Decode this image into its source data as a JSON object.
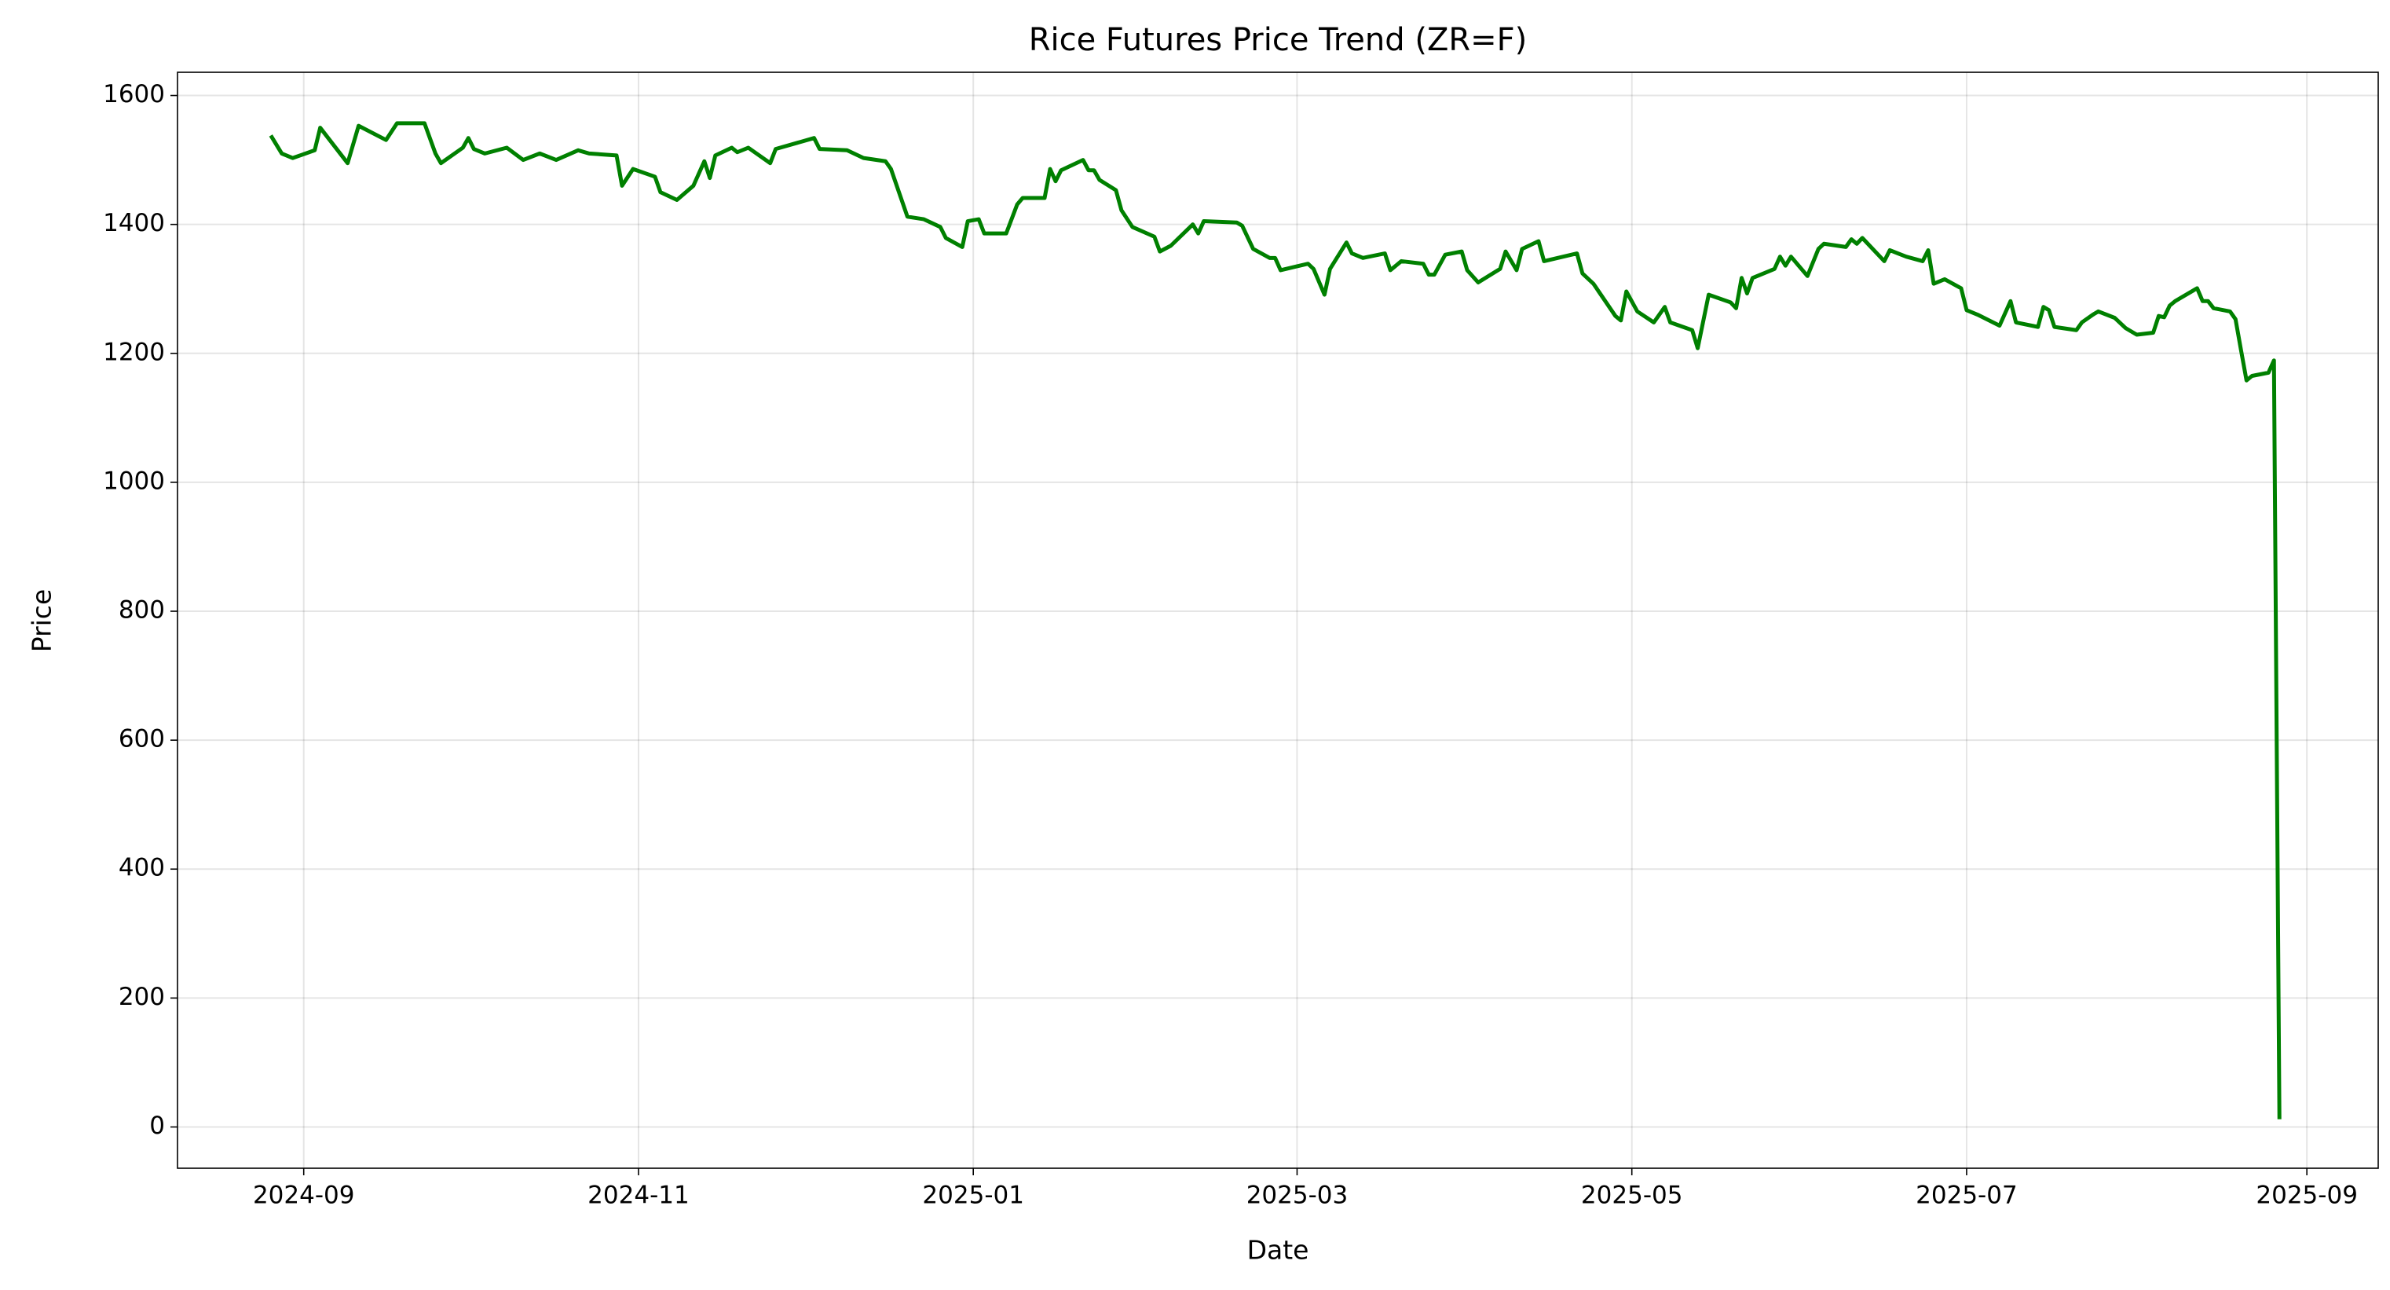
{
  "chart_data": {
    "type": "line",
    "title": "Rice Futures Price Trend (ZR=F)",
    "x_label": "Date",
    "y_label": "Price",
    "x": [
      "2024-08-26",
      "2024-08-28",
      "2024-08-30",
      "2024-09-03",
      "2024-09-04",
      "2024-09-09",
      "2024-09-11",
      "2024-09-16",
      "2024-09-18",
      "2024-09-23",
      "2024-09-25",
      "2024-09-26",
      "2024-09-30",
      "2024-10-01",
      "2024-10-02",
      "2024-10-04",
      "2024-10-08",
      "2024-10-11",
      "2024-10-14",
      "2024-10-17",
      "2024-10-21",
      "2024-10-23",
      "2024-10-28",
      "2024-10-29",
      "2024-10-31",
      "2024-11-04",
      "2024-11-05",
      "2024-11-08",
      "2024-11-11",
      "2024-11-13",
      "2024-11-14",
      "2024-11-15",
      "2024-11-18",
      "2024-11-19",
      "2024-11-21",
      "2024-11-25",
      "2024-11-26",
      "2024-12-03",
      "2024-12-04",
      "2024-12-09",
      "2024-12-12",
      "2024-12-16",
      "2024-12-17",
      "2024-12-20",
      "2024-12-23",
      "2024-12-26",
      "2024-12-27",
      "2024-12-30",
      "2024-12-31",
      "2025-01-02",
      "2025-01-03",
      "2025-01-07",
      "2025-01-09",
      "2025-01-10",
      "2025-01-14",
      "2025-01-15",
      "2025-01-16",
      "2025-01-17",
      "2025-01-21",
      "2025-01-22",
      "2025-01-23",
      "2025-01-24",
      "2025-01-27",
      "2025-01-28",
      "2025-01-30",
      "2025-02-03",
      "2025-02-04",
      "2025-02-06",
      "2025-02-10",
      "2025-02-11",
      "2025-02-12",
      "2025-02-18",
      "2025-02-19",
      "2025-02-21",
      "2025-02-24",
      "2025-02-25",
      "2025-02-26",
      "2025-03-03",
      "2025-03-04",
      "2025-03-06",
      "2025-03-07",
      "2025-03-10",
      "2025-03-11",
      "2025-03-13",
      "2025-03-17",
      "2025-03-18",
      "2025-03-20",
      "2025-03-24",
      "2025-03-25",
      "2025-03-26",
      "2025-03-28",
      "2025-03-31",
      "2025-04-01",
      "2025-04-03",
      "2025-04-07",
      "2025-04-08",
      "2025-04-10",
      "2025-04-11",
      "2025-04-14",
      "2025-04-15",
      "2025-04-21",
      "2025-04-22",
      "2025-04-24",
      "2025-04-28",
      "2025-04-29",
      "2025-04-30",
      "2025-05-02",
      "2025-05-05",
      "2025-05-07",
      "2025-05-08",
      "2025-05-12",
      "2025-05-13",
      "2025-05-15",
      "2025-05-19",
      "2025-05-20",
      "2025-05-21",
      "2025-05-22",
      "2025-05-23",
      "2025-05-27",
      "2025-05-28",
      "2025-05-29",
      "2025-05-30",
      "2025-06-02",
      "2025-06-04",
      "2025-06-05",
      "2025-06-09",
      "2025-06-10",
      "2025-06-11",
      "2025-06-12",
      "2025-06-16",
      "2025-06-17",
      "2025-06-20",
      "2025-06-23",
      "2025-06-24",
      "2025-06-25",
      "2025-06-27",
      "2025-06-30",
      "2025-07-01",
      "2025-07-03",
      "2025-07-07",
      "2025-07-09",
      "2025-07-10",
      "2025-07-14",
      "2025-07-15",
      "2025-07-16",
      "2025-07-17",
      "2025-07-21",
      "2025-07-22",
      "2025-07-24",
      "2025-07-25",
      "2025-07-28",
      "2025-07-30",
      "2025-08-01",
      "2025-08-04",
      "2025-08-05",
      "2025-08-06",
      "2025-08-07",
      "2025-08-08",
      "2025-08-12",
      "2025-08-13",
      "2025-08-14",
      "2025-08-15",
      "2025-08-18",
      "2025-08-19",
      "2025-08-20",
      "2025-08-21",
      "2025-08-22",
      "2025-08-25",
      "2025-08-26",
      "2025-08-27"
    ],
    "series": [
      {
        "color": "#008000",
        "values": [
          1538,
          1510,
          1503,
          1515,
          1550,
          1495,
          1553,
          1531,
          1557,
          1557,
          1510,
          1495,
          1519,
          1534,
          1517,
          1510,
          1519,
          1500,
          1510,
          1500,
          1515,
          1510,
          1507,
          1460,
          1486,
          1474,
          1450,
          1438,
          1460,
          1498,
          1472,
          1507,
          1519,
          1512,
          1519,
          1495,
          1517,
          1534,
          1517,
          1515,
          1503,
          1498,
          1486,
          1412,
          1408,
          1396,
          1379,
          1365,
          1405,
          1408,
          1386,
          1386,
          1431,
          1441,
          1441,
          1486,
          1467,
          1484,
          1500,
          1484,
          1484,
          1469,
          1453,
          1422,
          1396,
          1381,
          1358,
          1367,
          1400,
          1386,
          1405,
          1403,
          1398,
          1362,
          1348,
          1348,
          1329,
          1339,
          1331,
          1291,
          1331,
          1372,
          1355,
          1348,
          1355,
          1329,
          1343,
          1339,
          1322,
          1322,
          1353,
          1358,
          1329,
          1310,
          1331,
          1358,
          1329,
          1362,
          1374,
          1343,
          1355,
          1324,
          1308,
          1258,
          1251,
          1296,
          1265,
          1248,
          1272,
          1248,
          1236,
          1208,
          1291,
          1279,
          1270,
          1317,
          1293,
          1317,
          1331,
          1350,
          1336,
          1350,
          1320,
          1362,
          1370,
          1365,
          1377,
          1370,
          1379,
          1343,
          1360,
          1350,
          1343,
          1360,
          1308,
          1315,
          1301,
          1267,
          1260,
          1243,
          1281,
          1248,
          1241,
          1272,
          1267,
          1241,
          1236,
          1248,
          1260,
          1265,
          1255,
          1239,
          1229,
          1232,
          1258,
          1256,
          1274,
          1281,
          1301,
          1281,
          1281,
          1270,
          1265,
          1253,
          1205,
          1158,
          1165,
          1170,
          1189,
          12
        ]
      }
    ],
    "xlim": [
      "2024-08-09",
      "2025-09-14"
    ],
    "xticks": [
      "2024-09",
      "2024-11",
      "2025-01",
      "2025-03",
      "2025-05",
      "2025-07",
      "2025-09"
    ],
    "ylim": [
      -64,
      1636
    ],
    "yticks": [
      0,
      200,
      400,
      600,
      800,
      1000,
      1200,
      1400,
      1600
    ],
    "grid": true
  }
}
